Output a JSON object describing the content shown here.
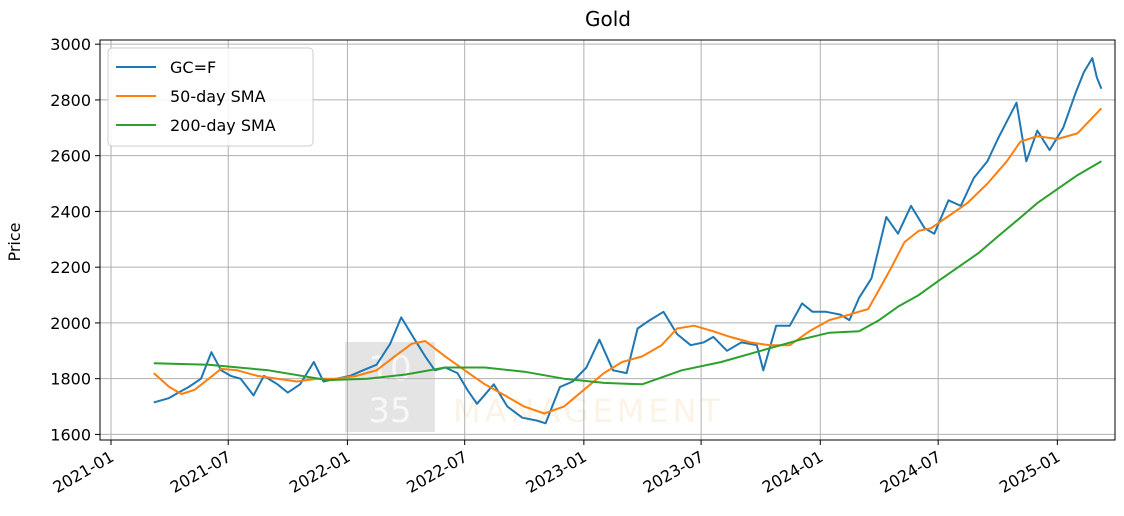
{
  "chart_data": {
    "type": "line",
    "title": "Gold",
    "xlabel": "",
    "ylabel": "Price",
    "x_ticks": [
      "2021-01",
      "2021-07",
      "2022-01",
      "2022-07",
      "2023-01",
      "2023-07",
      "2024-01",
      "2024-07",
      "2025-01"
    ],
    "y_ticks": [
      1600,
      1800,
      2000,
      2200,
      2400,
      2600,
      2800,
      3000
    ],
    "xlim": [
      "2020-12-15",
      "2025-03-31"
    ],
    "ylim": [
      1580,
      3015
    ],
    "grid": true,
    "legend_position": "upper-left",
    "watermark": {
      "digits_top": "10",
      "digits_bottom": "35",
      "text": "MANAGEMENT"
    },
    "series": [
      {
        "name": "GC=F",
        "color": "#1f77b4",
        "x": [
          "2021-03-08",
          "2021-03-31",
          "2021-04-15",
          "2021-05-01",
          "2021-05-20",
          "2021-06-05",
          "2021-06-20",
          "2021-07-05",
          "2021-07-20",
          "2021-08-09",
          "2021-08-25",
          "2021-09-15",
          "2021-10-01",
          "2021-10-20",
          "2021-11-10",
          "2021-11-25",
          "2021-12-15",
          "2022-01-05",
          "2022-01-25",
          "2022-02-15",
          "2022-03-08",
          "2022-03-25",
          "2022-04-15",
          "2022-05-01",
          "2022-05-16",
          "2022-06-01",
          "2022-06-20",
          "2022-07-05",
          "2022-07-20",
          "2022-08-15",
          "2022-09-05",
          "2022-09-28",
          "2022-10-20",
          "2022-11-03",
          "2022-11-25",
          "2022-12-15",
          "2023-01-05",
          "2023-01-25",
          "2023-02-15",
          "2023-03-08",
          "2023-03-25",
          "2023-04-13",
          "2023-05-04",
          "2023-05-25",
          "2023-06-15",
          "2023-07-05",
          "2023-07-20",
          "2023-08-10",
          "2023-09-01",
          "2023-09-25",
          "2023-10-05",
          "2023-10-25",
          "2023-11-15",
          "2023-12-04",
          "2023-12-20",
          "2024-01-10",
          "2024-02-01",
          "2024-02-15",
          "2024-03-01",
          "2024-03-20",
          "2024-04-12",
          "2024-04-30",
          "2024-05-20",
          "2024-06-10",
          "2024-06-25",
          "2024-07-17",
          "2024-08-05",
          "2024-08-25",
          "2024-09-15",
          "2024-10-01",
          "2024-10-30",
          "2024-11-14",
          "2024-12-01",
          "2024-12-20",
          "2025-01-10",
          "2025-01-30",
          "2025-02-11",
          "2025-02-24",
          "2025-03-03",
          "2025-03-10"
        ],
        "y": [
          1715,
          1730,
          1750,
          1770,
          1800,
          1895,
          1830,
          1810,
          1800,
          1740,
          1810,
          1780,
          1750,
          1780,
          1860,
          1790,
          1800,
          1810,
          1830,
          1850,
          1925,
          2020,
          1940,
          1880,
          1830,
          1840,
          1820,
          1760,
          1710,
          1780,
          1700,
          1660,
          1650,
          1640,
          1770,
          1790,
          1840,
          1940,
          1830,
          1820,
          1980,
          2010,
          2040,
          1960,
          1920,
          1930,
          1950,
          1900,
          1930,
          1920,
          1830,
          1990,
          1990,
          2070,
          2040,
          2040,
          2030,
          2010,
          2090,
          2160,
          2380,
          2320,
          2420,
          2340,
          2320,
          2440,
          2420,
          2520,
          2580,
          2660,
          2790,
          2580,
          2690,
          2620,
          2700,
          2830,
          2900,
          2950,
          2880,
          2840
        ]
      },
      {
        "name": "50-day SMA",
        "color": "#ff7f0e",
        "x": [
          "2021-03-08",
          "2021-04-01",
          "2021-04-20",
          "2021-05-10",
          "2021-06-01",
          "2021-06-20",
          "2021-07-15",
          "2021-08-15",
          "2021-09-15",
          "2021-10-15",
          "2021-11-15",
          "2021-12-15",
          "2022-01-15",
          "2022-02-15",
          "2022-03-15",
          "2022-04-10",
          "2022-05-01",
          "2022-06-01",
          "2022-07-01",
          "2022-08-01",
          "2022-09-01",
          "2022-10-01",
          "2022-11-01",
          "2022-12-01",
          "2023-01-01",
          "2023-02-01",
          "2023-03-01",
          "2023-04-01",
          "2023-05-01",
          "2023-05-25",
          "2023-06-20",
          "2023-07-20",
          "2023-08-15",
          "2023-09-15",
          "2023-10-15",
          "2023-11-15",
          "2023-12-15",
          "2024-01-15",
          "2024-02-15",
          "2024-03-15",
          "2024-04-01",
          "2024-04-20",
          "2024-05-10",
          "2024-06-01",
          "2024-06-20",
          "2024-07-15",
          "2024-08-15",
          "2024-09-15",
          "2024-10-15",
          "2024-11-05",
          "2024-12-01",
          "2025-01-01",
          "2025-02-01",
          "2025-03-10"
        ],
        "y": [
          1820,
          1770,
          1745,
          1760,
          1800,
          1835,
          1830,
          1810,
          1800,
          1790,
          1800,
          1800,
          1810,
          1830,
          1880,
          1925,
          1935,
          1880,
          1830,
          1780,
          1740,
          1700,
          1675,
          1700,
          1760,
          1820,
          1860,
          1880,
          1920,
          1980,
          1990,
          1970,
          1950,
          1930,
          1920,
          1920,
          1970,
          2010,
          2030,
          2050,
          2120,
          2200,
          2290,
          2330,
          2340,
          2380,
          2430,
          2500,
          2580,
          2650,
          2670,
          2660,
          2680,
          2770
        ]
      },
      {
        "name": "200-day SMA",
        "color": "#2ca02c",
        "x": [
          "2021-03-08",
          "2021-06-01",
          "2021-09-01",
          "2021-12-01",
          "2022-02-01",
          "2022-04-01",
          "2022-06-01",
          "2022-08-01",
          "2022-10-01",
          "2022-12-01",
          "2023-02-01",
          "2023-04-01",
          "2023-06-01",
          "2023-08-01",
          "2023-10-01",
          "2023-12-01",
          "2024-01-15",
          "2024-03-01",
          "2024-04-01",
          "2024-05-01",
          "2024-06-01",
          "2024-07-01",
          "2024-08-01",
          "2024-09-01",
          "2024-10-01",
          "2024-11-01",
          "2024-12-01",
          "2025-01-01",
          "2025-02-01",
          "2025-03-10"
        ],
        "y": [
          1855,
          1850,
          1830,
          1795,
          1800,
          1815,
          1840,
          1840,
          1825,
          1800,
          1785,
          1780,
          1830,
          1860,
          1900,
          1940,
          1965,
          1970,
          2010,
          2060,
          2100,
          2150,
          2200,
          2250,
          2310,
          2370,
          2430,
          2480,
          2530,
          2580
        ]
      }
    ]
  }
}
